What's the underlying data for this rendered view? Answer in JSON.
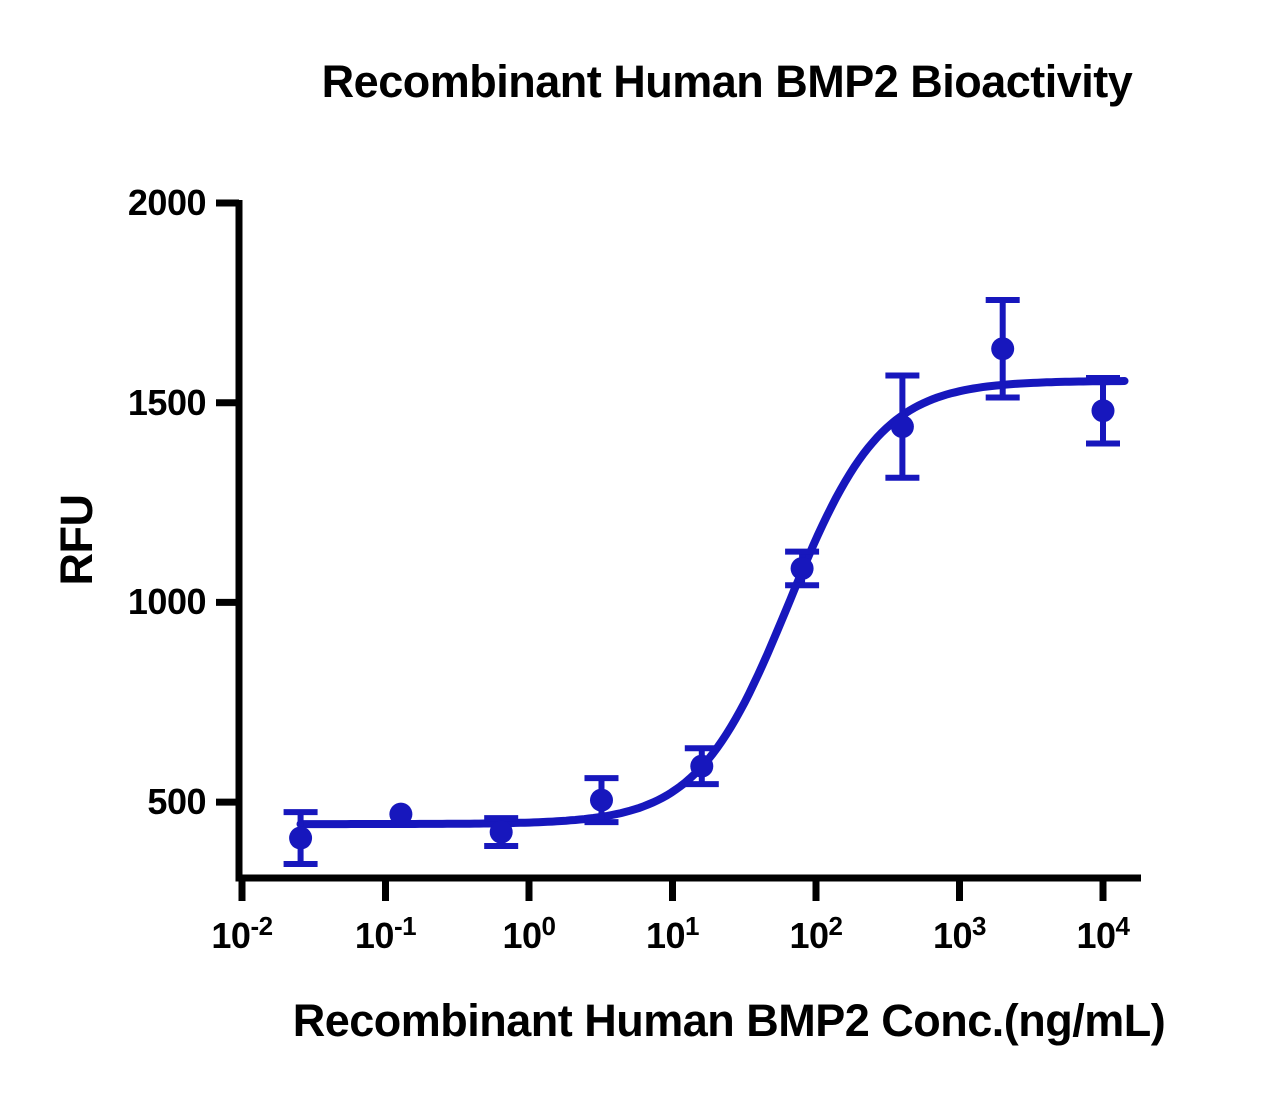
{
  "chart_data": {
    "type": "scatter",
    "title": "Recombinant Human BMP2 Bioactivity",
    "xlabel": "Recombinant Human BMP2 Conc.(ng/mL)",
    "ylabel": "RFU",
    "x_scale": "log10",
    "x_unit": "ng/mL",
    "xlim_log10": [
      -2,
      4.3
    ],
    "ylim": [
      310,
      2000
    ],
    "y_ticks": [
      500,
      1000,
      1500,
      2000
    ],
    "x_tick_exponents": [
      -2,
      -1,
      0,
      1,
      2,
      3,
      4
    ],
    "grid": false,
    "legend": false,
    "frame": "left-bottom-axes-only",
    "axis_color": "#000000",
    "series": [
      {
        "name": "Recombinant Human BMP2",
        "color": "#1717bd",
        "marker": "circle",
        "points": [
          {
            "conc_ng_ml": 0.0256,
            "rfu": 410,
            "err": 65
          },
          {
            "conc_ng_ml": 0.128,
            "rfu": 470,
            "err": 0
          },
          {
            "conc_ng_ml": 0.64,
            "rfu": 425,
            "err": 35
          },
          {
            "conc_ng_ml": 3.2,
            "rfu": 505,
            "err": 55
          },
          {
            "conc_ng_ml": 16,
            "rfu": 590,
            "err": 45
          },
          {
            "conc_ng_ml": 80,
            "rfu": 1085,
            "err": 42
          },
          {
            "conc_ng_ml": 400,
            "rfu": 1440,
            "err": 128
          },
          {
            "conc_ng_ml": 2000,
            "rfu": 1635,
            "err": 122
          },
          {
            "conc_ng_ml": 10000,
            "rfu": 1480,
            "err": 82
          }
        ],
        "fit_curve": {
          "model": "4PL",
          "bottom": 445,
          "top": 1555,
          "ec50_ng_ml": 65,
          "hill": 1.36,
          "x_range_log10": [
            -1.592,
            4.15
          ]
        }
      }
    ]
  }
}
